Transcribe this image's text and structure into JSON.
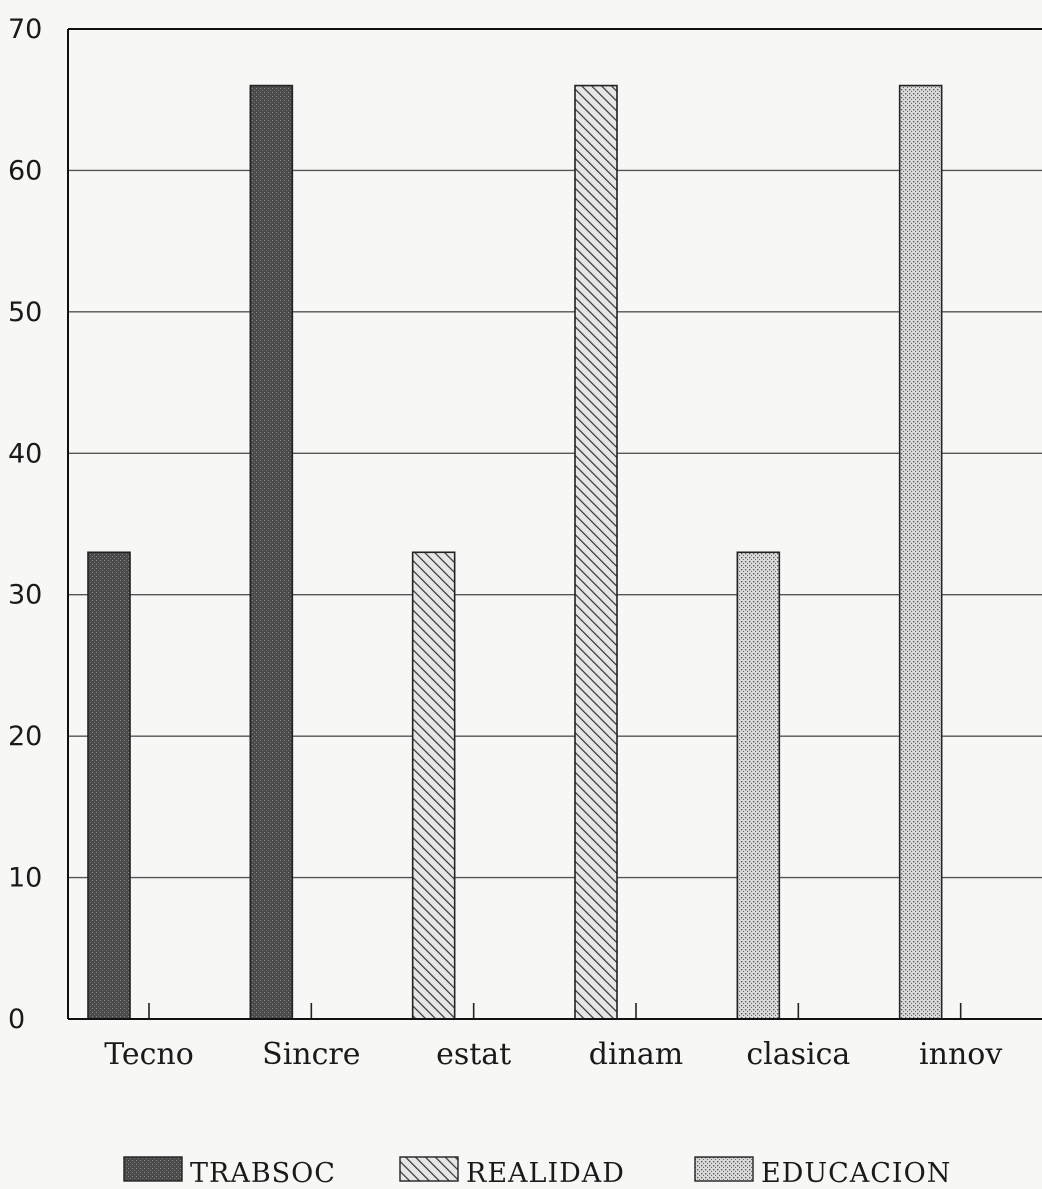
{
  "chart_data": {
    "type": "bar",
    "categories": [
      "Tecno",
      "Sincre",
      "estat",
      "dinam",
      "clasica",
      "innov"
    ],
    "series": [
      {
        "name": "TRABSOC",
        "values": [
          33,
          66,
          0,
          0,
          0,
          0
        ],
        "color": "#555555",
        "pattern": "dense-gray"
      },
      {
        "name": "REALIDAD",
        "values": [
          0,
          0,
          33,
          66,
          0,
          0
        ],
        "color": "#b5b5b5",
        "pattern": "diagonal-hatch"
      },
      {
        "name": "EDUCACION",
        "values": [
          0,
          0,
          0,
          0,
          33,
          66
        ],
        "color": "#cfcfcf",
        "pattern": "dots"
      }
    ],
    "y_ticks": [
      "0",
      "10",
      "20",
      "30",
      "40",
      "50",
      "60",
      "70"
    ],
    "ylim": [
      0,
      70
    ],
    "grid": true,
    "legend_position": "bottom"
  }
}
